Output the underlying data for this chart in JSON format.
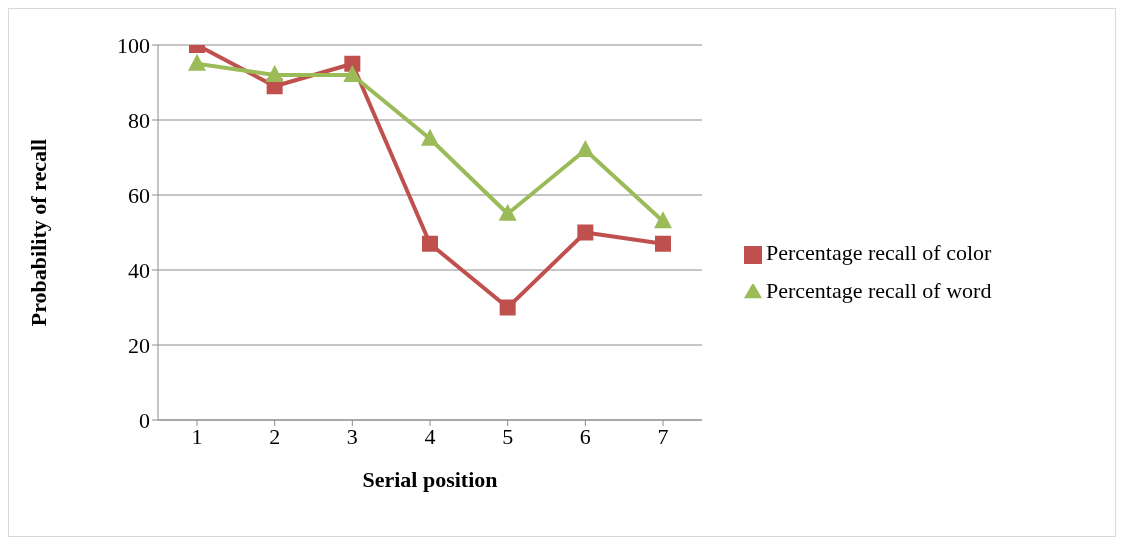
{
  "chart_data": {
    "type": "line",
    "xlabel": "Serial position",
    "ylabel": "Probability of recall",
    "categories": [
      "1",
      "2",
      "3",
      "4",
      "5",
      "6",
      "7"
    ],
    "series": [
      {
        "name": "Percentage recall of color",
        "color": "#c0504d",
        "marker": "square",
        "values": [
          100,
          89,
          95,
          47,
          30,
          50,
          47
        ]
      },
      {
        "name": "Percentage recall of word",
        "color": "#9bbb59",
        "marker": "triangle",
        "values": [
          95,
          92,
          92,
          75,
          55,
          72,
          53
        ]
      }
    ],
    "ylim": [
      0,
      100
    ],
    "yticks": [
      0,
      20,
      40,
      60,
      80,
      100
    ],
    "grid": "y",
    "legend": "right",
    "line_style": "solid"
  }
}
